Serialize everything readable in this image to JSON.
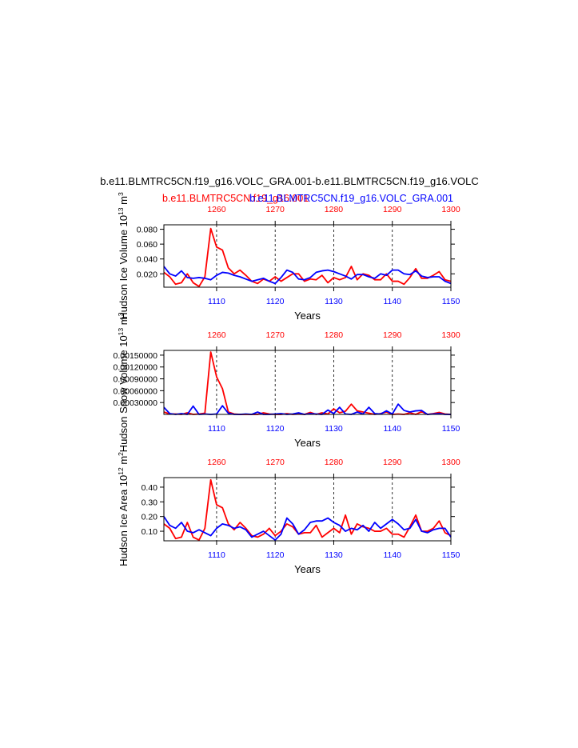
{
  "title": "b.e11.BLMTRC5CN.f19_g16.VOLC_GRA.001-b.e11.BLMTRC5CN.f19_g16.VOLC",
  "legend": {
    "red_label": "b.e11.BLMTRC5CN.f19_g16.001",
    "blue_label": "b.e11.BLMTRC5CN.f19_g16.VOLC_GRA.001"
  },
  "colors": {
    "red": "#ff0000",
    "blue": "#0000ff",
    "axis": "#000000"
  },
  "chart_data": [
    {
      "type": "line",
      "xlabel": "Years",
      "ylabel": "Hudson Ice Volume 10",
      "ylabel_sup": "13",
      "ylabel_unit": "m",
      "ylabel_unit_sup": "3",
      "ylim": [
        0.002,
        0.086
      ],
      "yticks": [
        0.02,
        0.04,
        0.06,
        0.08
      ],
      "ytick_labels": [
        "0.020",
        "0.040",
        "0.060",
        "0.080"
      ],
      "x_bottom": {
        "range": [
          1101,
          1150
        ],
        "ticks": [
          1110,
          1120,
          1130,
          1140,
          1150
        ],
        "color": "blue"
      },
      "x_top": {
        "range": [
          1251,
          1300
        ],
        "ticks": [
          1260,
          1270,
          1280,
          1290,
          1300
        ],
        "color": "red"
      },
      "series": [
        {
          "color": "red",
          "values": [
            0.022,
            0.016,
            0.006,
            0.008,
            0.02,
            0.008,
            0.003,
            0.016,
            0.081,
            0.056,
            0.052,
            0.028,
            0.02,
            0.025,
            0.018,
            0.01,
            0.007,
            0.013,
            0.01,
            0.016,
            0.01,
            0.015,
            0.02,
            0.02,
            0.01,
            0.013,
            0.012,
            0.018,
            0.008,
            0.015,
            0.012,
            0.015,
            0.03,
            0.012,
            0.02,
            0.018,
            0.012,
            0.012,
            0.02,
            0.01,
            0.01,
            0.006,
            0.015,
            0.027,
            0.014,
            0.014,
            0.018,
            0.023,
            0.012,
            0.01
          ]
        },
        {
          "color": "blue",
          "values": [
            0.03,
            0.02,
            0.017,
            0.024,
            0.015,
            0.014,
            0.015,
            0.014,
            0.012,
            0.018,
            0.022,
            0.021,
            0.018,
            0.016,
            0.013,
            0.01,
            0.012,
            0.014,
            0.01,
            0.007,
            0.015,
            0.025,
            0.022,
            0.013,
            0.012,
            0.015,
            0.022,
            0.024,
            0.025,
            0.023,
            0.02,
            0.017,
            0.013,
            0.019,
            0.019,
            0.016,
            0.014,
            0.02,
            0.018,
            0.025,
            0.025,
            0.02,
            0.019,
            0.024,
            0.017,
            0.015,
            0.016,
            0.016,
            0.01,
            0.007
          ]
        }
      ]
    },
    {
      "type": "line",
      "xlabel": "Years",
      "ylabel": "Hudson Snow Volume 10",
      "ylabel_sup": "13",
      "ylabel_unit": "m",
      "ylabel_unit_sup": "3",
      "ylim": [
        0,
        0.00162
      ],
      "yticks": [
        0.0003,
        0.0006,
        0.0009,
        0.0012,
        0.0015
      ],
      "ytick_labels": [
        "0.00030000",
        "0.00060000",
        "0.00090000",
        "0.00120000",
        "0.00150000"
      ],
      "x_bottom": {
        "range": [
          1101,
          1150
        ],
        "ticks": [
          1110,
          1120,
          1130,
          1140,
          1150
        ],
        "color": "blue"
      },
      "x_top": {
        "range": [
          1251,
          1300
        ],
        "ticks": [
          1260,
          1270,
          1280,
          1290,
          1300
        ],
        "color": "red"
      },
      "series": [
        {
          "color": "red",
          "values": [
            6e-05,
            1e-05,
            1e-05,
            0.0,
            4e-05,
            0.0,
            1e-05,
            3e-05,
            0.00158,
            0.00095,
            0.00065,
            6e-05,
            1e-05,
            0.0,
            0.0,
            0.0,
            0.0,
            4e-05,
            1e-05,
            0.0,
            0.0,
            2e-05,
            0.0,
            1e-05,
            0.0,
            5e-05,
            0.0,
            4e-05,
            1e-05,
            0.00014,
            4e-05,
            8e-05,
            0.00026,
            9e-05,
            6e-05,
            3e-05,
            0.0,
            2e-05,
            6e-05,
            0.0,
            1e-05,
            0.0,
            4e-05,
            0.0,
            7e-05,
            0.0,
            2e-05,
            5e-05,
            1e-05,
            0.0
          ]
        },
        {
          "color": "blue",
          "values": [
            0.00018,
            2e-05,
            0.0,
            2e-05,
            0.0,
            0.00021,
            0.0,
            1e-05,
            0.0,
            1e-05,
            0.00022,
            3e-05,
            0.0,
            0.0,
            1e-05,
            0.0,
            6e-05,
            0.0,
            0.0,
            1e-05,
            2e-05,
            0.0,
            1e-05,
            4e-05,
            0.0,
            2e-05,
            1e-05,
            0.0,
            0.00011,
            2e-05,
            0.00018,
            1e-05,
            0.0,
            6e-05,
            1e-05,
            0.00018,
            2e-05,
            1e-05,
            9e-05,
            1e-05,
            0.00026,
            0.0001,
            6e-05,
            9e-05,
            0.0001,
            0.0,
            1e-05,
            2e-05,
            0.0,
            0.0
          ]
        }
      ]
    },
    {
      "type": "line",
      "xlabel": "Years",
      "ylabel": "Hudson Ice Area 10",
      "ylabel_sup": "12",
      "ylabel_unit": "m",
      "ylabel_unit_sup": "2",
      "ylim": [
        0.035,
        0.465
      ],
      "yticks": [
        0.1,
        0.2,
        0.3,
        0.4
      ],
      "ytick_labels": [
        "0.10",
        "0.20",
        "0.30",
        "0.40"
      ],
      "x_bottom": {
        "range": [
          1101,
          1150
        ],
        "ticks": [
          1110,
          1120,
          1130,
          1140,
          1150
        ],
        "color": "blue"
      },
      "x_top": {
        "range": [
          1251,
          1300
        ],
        "ticks": [
          1260,
          1270,
          1280,
          1290,
          1300
        ],
        "color": "red"
      },
      "series": [
        {
          "color": "red",
          "values": [
            0.15,
            0.12,
            0.05,
            0.06,
            0.16,
            0.06,
            0.04,
            0.12,
            0.45,
            0.28,
            0.26,
            0.15,
            0.11,
            0.16,
            0.12,
            0.07,
            0.06,
            0.08,
            0.12,
            0.07,
            0.1,
            0.15,
            0.13,
            0.08,
            0.09,
            0.09,
            0.14,
            0.06,
            0.09,
            0.12,
            0.09,
            0.21,
            0.08,
            0.15,
            0.13,
            0.12,
            0.1,
            0.1,
            0.12,
            0.08,
            0.08,
            0.06,
            0.13,
            0.21,
            0.1,
            0.1,
            0.12,
            0.17,
            0.09,
            0.07
          ]
        },
        {
          "color": "blue",
          "values": [
            0.2,
            0.14,
            0.12,
            0.16,
            0.1,
            0.09,
            0.11,
            0.09,
            0.07,
            0.12,
            0.15,
            0.14,
            0.12,
            0.13,
            0.11,
            0.06,
            0.08,
            0.1,
            0.07,
            0.04,
            0.08,
            0.19,
            0.15,
            0.08,
            0.11,
            0.16,
            0.17,
            0.17,
            0.19,
            0.16,
            0.14,
            0.1,
            0.12,
            0.11,
            0.14,
            0.1,
            0.16,
            0.12,
            0.15,
            0.18,
            0.15,
            0.11,
            0.12,
            0.18,
            0.1,
            0.09,
            0.11,
            0.12,
            0.12,
            0.06
          ]
        }
      ]
    }
  ]
}
